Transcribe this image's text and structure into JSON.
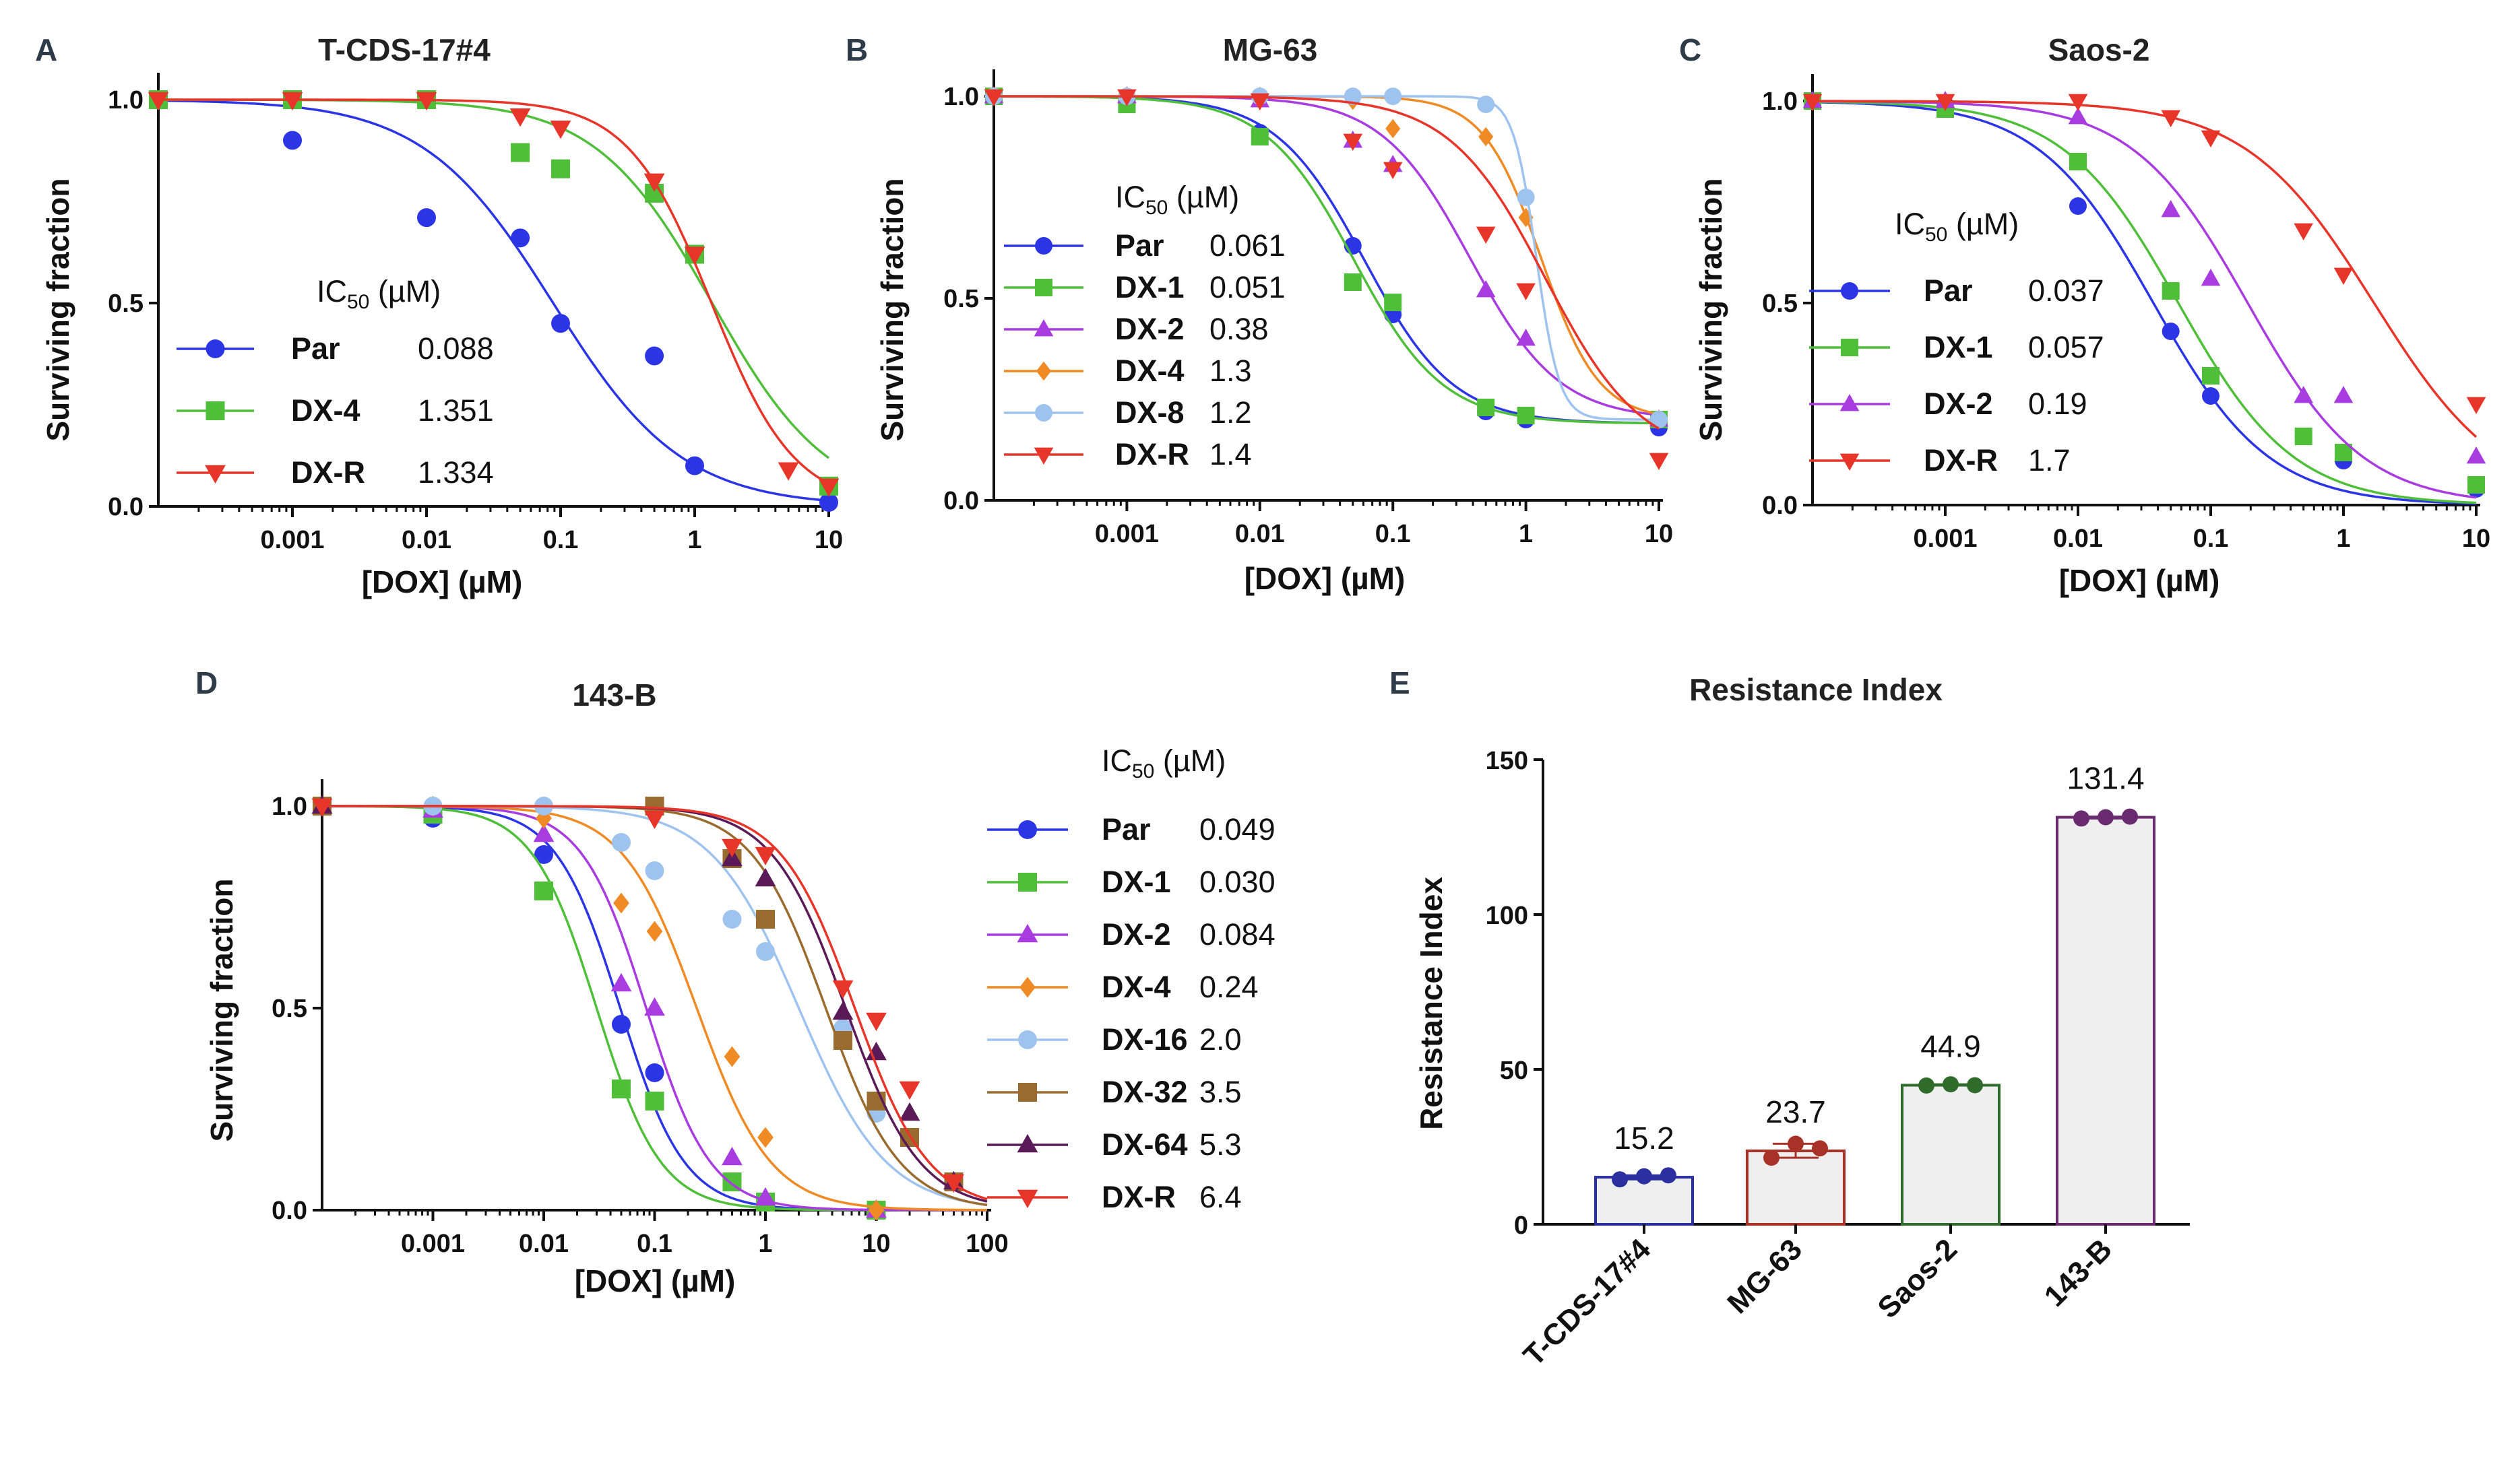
{
  "chart_data": [
    {
      "panel": "A",
      "type": "line",
      "title": "T-CDS-17#4",
      "xlabel": "[DOX] (µM)",
      "ylabel": "Surviving fraction",
      "xscale": "log",
      "xlim": [
        0.0001,
        10
      ],
      "ylim": [
        0,
        1
      ],
      "xticks": [
        0.001,
        0.01,
        0.1,
        1,
        10
      ],
      "xticklabels": [
        "0.001",
        "0.01",
        "0.1",
        "1",
        "10"
      ],
      "yticks": [
        0,
        0.5,
        1
      ],
      "yticklabels": [
        "0.0",
        "0.5",
        "1.0"
      ],
      "legend_title": "IC",
      "legend_title_sub": "50",
      "legend_title_unit": " (µM)",
      "legend_position": "left",
      "series": [
        {
          "name": "Par",
          "ic50_label": "0.088",
          "ic50": 0.088,
          "bottom": 0.0,
          "hill": 0.9,
          "color": "#2b35e6",
          "marker": "circle",
          "x": [
            0.0001,
            0.001,
            0.01,
            0.05,
            0.1,
            0.5,
            1,
            10
          ],
          "y": [
            1.0,
            0.9,
            0.71,
            0.66,
            0.45,
            0.37,
            0.1,
            0.01
          ]
        },
        {
          "name": "DX-4",
          "ic50_label": "1.351",
          "ic50": 1.351,
          "bottom": 0.0,
          "hill": 1.0,
          "color": "#4fbf3a",
          "marker": "square",
          "x": [
            0.0001,
            0.001,
            0.01,
            0.05,
            0.1,
            0.5,
            1,
            10
          ],
          "y": [
            1.0,
            1.0,
            1.0,
            0.87,
            0.83,
            0.77,
            0.62,
            0.05
          ]
        },
        {
          "name": "DX-R",
          "ic50_label": "1.334",
          "ic50": 1.334,
          "bottom": 0.0,
          "hill": 1.4,
          "color": "#e8352a",
          "marker": "triangle-down",
          "x": [
            0.0001,
            0.001,
            0.01,
            0.05,
            0.1,
            0.5,
            1,
            5,
            10
          ],
          "y": [
            1.0,
            1.0,
            1.0,
            0.96,
            0.93,
            0.8,
            0.62,
            0.09,
            0.05
          ]
        }
      ]
    },
    {
      "panel": "B",
      "type": "line",
      "title": "MG-63",
      "xlabel": "[DOX] (µM)",
      "ylabel": "Surviving fraction",
      "xscale": "log",
      "xlim": [
        0.0001,
        10
      ],
      "ylim": [
        0,
        1
      ],
      "xticks": [
        0.001,
        0.01,
        0.1,
        1,
        10
      ],
      "xticklabels": [
        "0.001",
        "0.01",
        "0.1",
        "1",
        "10"
      ],
      "yticks": [
        0,
        0.5,
        1
      ],
      "yticklabels": [
        "0.0",
        "0.5",
        "1.0"
      ],
      "legend_title": "IC",
      "legend_title_sub": "50",
      "legend_title_unit": " (µM)",
      "legend_position": "left",
      "series": [
        {
          "name": "Par",
          "ic50_label": "0.061",
          "ic50": 0.061,
          "bottom": 0.19,
          "hill": 1.3,
          "color": "#2b35e6",
          "marker": "circle",
          "x": [
            0.0001,
            0.001,
            0.01,
            0.05,
            0.1,
            0.5,
            1,
            10
          ],
          "y": [
            1.0,
            0.99,
            0.91,
            0.63,
            0.46,
            0.22,
            0.2,
            0.18
          ]
        },
        {
          "name": "DX-1",
          "ic50_label": "0.051",
          "ic50": 0.051,
          "bottom": 0.19,
          "hill": 1.3,
          "color": "#4fbf3a",
          "marker": "square",
          "x": [
            0.0001,
            0.001,
            0.01,
            0.05,
            0.1,
            0.5,
            1,
            10
          ],
          "y": [
            1.0,
            0.98,
            0.9,
            0.54,
            0.49,
            0.23,
            0.21,
            0.2
          ]
        },
        {
          "name": "DX-2",
          "ic50_label": "0.38",
          "ic50": 0.38,
          "bottom": 0.2,
          "hill": 1.3,
          "color": "#a93ce0",
          "marker": "triangle-up",
          "x": [
            0.0001,
            0.001,
            0.01,
            0.05,
            0.1,
            0.5,
            1,
            10
          ],
          "y": [
            1.0,
            1.0,
            0.99,
            0.89,
            0.83,
            0.52,
            0.4,
            0.2
          ]
        },
        {
          "name": "DX-4",
          "ic50_label": "1.3",
          "ic50": 1.3,
          "bottom": 0.2,
          "hill": 2.0,
          "color": "#ef8a25",
          "marker": "diamond",
          "x": [
            0.0001,
            0.001,
            0.01,
            0.05,
            0.1,
            0.5,
            1,
            10
          ],
          "y": [
            1.0,
            1.0,
            1.0,
            0.99,
            0.92,
            0.9,
            0.7,
            0.2
          ]
        },
        {
          "name": "DX-8",
          "ic50_label": "1.2",
          "ic50": 1.2,
          "bottom": 0.2,
          "hill": 5.0,
          "color": "#9fc3ef",
          "marker": "circle",
          "x": [
            0.0001,
            0.001,
            0.01,
            0.05,
            0.1,
            0.5,
            1,
            10
          ],
          "y": [
            1.0,
            1.0,
            1.0,
            1.0,
            1.0,
            0.98,
            0.75,
            0.2
          ]
        },
        {
          "name": "DX-R",
          "ic50_label": "1.4",
          "ic50": 1.4,
          "bottom": 0.1,
          "hill": 1.2,
          "color": "#e8352a",
          "marker": "triangle-down",
          "x": [
            0.0001,
            0.001,
            0.01,
            0.05,
            0.1,
            0.5,
            1,
            10
          ],
          "y": [
            1.0,
            1.0,
            0.99,
            0.89,
            0.82,
            0.66,
            0.52,
            0.1
          ]
        }
      ]
    },
    {
      "panel": "C",
      "type": "line",
      "title": "Saos-2",
      "xlabel": "[DOX] (µM)",
      "ylabel": "Surviving fraction",
      "xscale": "log",
      "xlim": [
        0.0001,
        10
      ],
      "ylim": [
        0,
        1
      ],
      "xticks": [
        0.001,
        0.01,
        0.1,
        1,
        10
      ],
      "xticklabels": [
        "0.001",
        "0.01",
        "0.1",
        "1",
        "10"
      ],
      "yticks": [
        0,
        0.5,
        1
      ],
      "yticklabels": [
        "0.0",
        "0.5",
        "1.0"
      ],
      "legend_title": "IC",
      "legend_title_sub": "50",
      "legend_title_unit": " (µM)",
      "legend_position": "left",
      "series": [
        {
          "name": "Par",
          "ic50_label": "0.037",
          "ic50": 0.037,
          "bottom": 0.0,
          "hill": 1.0,
          "color": "#2b35e6",
          "marker": "circle",
          "x": [
            0.0001,
            0.001,
            0.01,
            0.05,
            0.1,
            0.5,
            1,
            10
          ],
          "y": [
            1.0,
            0.99,
            0.74,
            0.43,
            0.27,
            0.17,
            0.11,
            0.04
          ]
        },
        {
          "name": "DX-1",
          "ic50_label": "0.057",
          "ic50": 0.057,
          "bottom": 0.0,
          "hill": 1.0,
          "color": "#4fbf3a",
          "marker": "square",
          "x": [
            0.0001,
            0.001,
            0.01,
            0.05,
            0.1,
            0.5,
            1,
            10
          ],
          "y": [
            1.0,
            0.98,
            0.85,
            0.53,
            0.32,
            0.17,
            0.13,
            0.05
          ]
        },
        {
          "name": "DX-2",
          "ic50_label": "0.19",
          "ic50": 0.19,
          "bottom": 0.0,
          "hill": 1.0,
          "color": "#a93ce0",
          "marker": "triangle-up",
          "x": [
            0.0001,
            0.001,
            0.01,
            0.05,
            0.1,
            0.5,
            1,
            10
          ],
          "y": [
            1.0,
            1.0,
            0.96,
            0.73,
            0.56,
            0.27,
            0.27,
            0.12
          ]
        },
        {
          "name": "DX-R",
          "ic50_label": "1.7",
          "ic50": 1.7,
          "bottom": 0.0,
          "hill": 0.9,
          "color": "#e8352a",
          "marker": "triangle-down",
          "x": [
            0.0001,
            0.001,
            0.01,
            0.05,
            0.1,
            0.5,
            1,
            10
          ],
          "y": [
            1.0,
            1.0,
            1.0,
            0.96,
            0.91,
            0.68,
            0.57,
            0.25
          ]
        }
      ]
    },
    {
      "panel": "D",
      "type": "line",
      "title": "143-B",
      "xlabel": "[DOX] (µM)",
      "ylabel": "Surviving fraction",
      "xscale": "log",
      "xlim": [
        0.0001,
        100
      ],
      "ylim": [
        0,
        1
      ],
      "xticks": [
        0.001,
        0.01,
        0.1,
        1,
        10,
        100
      ],
      "xticklabels": [
        "0.001",
        "0.01",
        "0.1",
        "1",
        "10",
        "100"
      ],
      "yticks": [
        0,
        0.5,
        1
      ],
      "yticklabels": [
        "0.0",
        "0.5",
        "1.0"
      ],
      "legend_title": "IC",
      "legend_title_sub": "50",
      "legend_title_unit": " (µM)",
      "legend_position": "right",
      "series": [
        {
          "name": "Par",
          "ic50_label": "0.049",
          "ic50": 0.049,
          "bottom": 0.0,
          "hill": 1.5,
          "color": "#2b35e6",
          "marker": "circle",
          "x": [
            0.0001,
            0.001,
            0.01,
            0.05,
            0.1,
            0.5,
            1,
            10
          ],
          "y": [
            1.0,
            0.97,
            0.88,
            0.46,
            0.34,
            0.07,
            0.02,
            0.0
          ]
        },
        {
          "name": "DX-1",
          "ic50_label": "0.030",
          "ic50": 0.03,
          "bottom": 0.0,
          "hill": 1.5,
          "color": "#4fbf3a",
          "marker": "square",
          "x": [
            0.0001,
            0.001,
            0.01,
            0.05,
            0.1,
            0.5,
            1,
            10
          ],
          "y": [
            1.0,
            0.98,
            0.79,
            0.3,
            0.27,
            0.07,
            0.02,
            0.0
          ]
        },
        {
          "name": "DX-2",
          "ic50_label": "0.084",
          "ic50": 0.084,
          "bottom": 0.0,
          "hill": 1.5,
          "color": "#a93ce0",
          "marker": "triangle-up",
          "x": [
            0.0001,
            0.001,
            0.01,
            0.05,
            0.1,
            0.5,
            1,
            10
          ],
          "y": [
            1.0,
            0.99,
            0.93,
            0.56,
            0.5,
            0.13,
            0.03,
            0.0
          ]
        },
        {
          "name": "DX-4",
          "ic50_label": "0.24",
          "ic50": 0.24,
          "bottom": 0.0,
          "hill": 1.3,
          "color": "#ef8a25",
          "marker": "diamond",
          "x": [
            0.0001,
            0.001,
            0.01,
            0.05,
            0.1,
            0.5,
            1,
            10
          ],
          "y": [
            1.0,
            1.0,
            0.97,
            0.76,
            0.69,
            0.38,
            0.18,
            0.0
          ]
        },
        {
          "name": "DX-16",
          "ic50_label": "2.0",
          "ic50": 2.0,
          "bottom": 0.0,
          "hill": 1.1,
          "color": "#9fc3ef",
          "marker": "circle",
          "x": [
            0.0001,
            0.001,
            0.01,
            0.05,
            0.1,
            0.5,
            1,
            5,
            10,
            20,
            50
          ],
          "y": [
            1.0,
            1.0,
            1.0,
            0.91,
            0.84,
            0.72,
            0.64,
            0.45,
            0.24,
            0.18,
            0.07
          ]
        },
        {
          "name": "DX-32",
          "ic50_label": "3.5",
          "ic50": 3.5,
          "bottom": 0.0,
          "hill": 1.3,
          "color": "#9a6b2e",
          "marker": "square",
          "x": [
            0.0001,
            0.1,
            0.5,
            1,
            5,
            10,
            20,
            50
          ],
          "y": [
            1.0,
            1.0,
            0.87,
            0.72,
            0.42,
            0.27,
            0.18,
            0.07
          ]
        },
        {
          "name": "DX-64",
          "ic50_label": "5.3",
          "ic50": 5.3,
          "bottom": 0.0,
          "hill": 1.3,
          "color": "#5a1a57",
          "marker": "triangle-up",
          "x": [
            0.0001,
            0.5,
            1,
            5,
            10,
            20,
            50
          ],
          "y": [
            1.0,
            0.87,
            0.82,
            0.49,
            0.39,
            0.24,
            0.07
          ]
        },
        {
          "name": "DX-R",
          "ic50_label": "6.4",
          "ic50": 6.4,
          "bottom": 0.0,
          "hill": 1.3,
          "color": "#e8352a",
          "marker": "triangle-down",
          "x": [
            0.0001,
            0.1,
            0.5,
            1,
            5,
            10,
            20,
            50
          ],
          "y": [
            1.0,
            0.97,
            0.9,
            0.88,
            0.55,
            0.47,
            0.3,
            0.07
          ]
        }
      ]
    },
    {
      "panel": "E",
      "type": "bar",
      "title": "Resistance Index",
      "xlabel": "",
      "ylabel": "Resistance Index",
      "ylim": [
        0,
        150
      ],
      "yticks": [
        0,
        50,
        100,
        150
      ],
      "yticklabels": [
        "0",
        "50",
        "100",
        "150"
      ],
      "categories": [
        "T-CDS-17#4",
        "MG-63",
        "Saos-2",
        "143-B"
      ],
      "values": [
        15.2,
        23.7,
        44.9,
        131.4
      ],
      "value_labels": [
        "15.2",
        "23.7",
        "44.9",
        "131.4"
      ],
      "replicates": [
        [
          14.5,
          15.5,
          15.8
        ],
        [
          21.5,
          26.0,
          24.5
        ],
        [
          44.8,
          45.2,
          44.9
        ],
        [
          131.0,
          131.4,
          131.6
        ]
      ],
      "colors": [
        "#2c2fa0",
        "#a83228",
        "#2f6b2a",
        "#6a2a70"
      ]
    }
  ]
}
